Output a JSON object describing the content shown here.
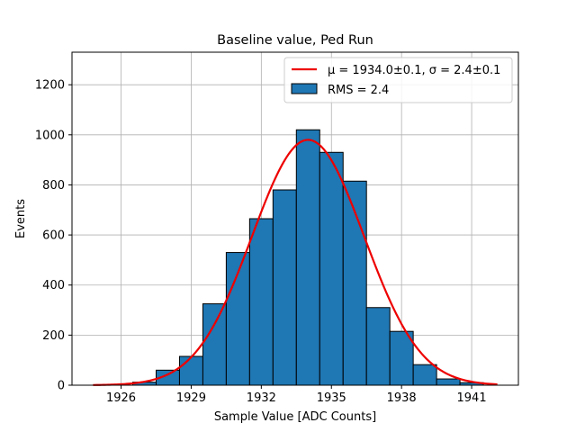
{
  "chart_data": {
    "type": "bar",
    "title": "Baseline value, Ped Run",
    "xlabel": "Sample Value [ADC Counts]",
    "ylabel": "Events",
    "xlim": [
      1923.9,
      1943.0
    ],
    "ylim": [
      0,
      1330
    ],
    "xticks": [
      1926,
      1929,
      1932,
      1935,
      1938,
      1941
    ],
    "yticks": [
      0,
      200,
      400,
      600,
      800,
      1000,
      1200
    ],
    "grid": true,
    "legend_position": "top-right",
    "bin_width": 1,
    "bins": [
      {
        "left": 1926.5,
        "value": 12
      },
      {
        "left": 1927.5,
        "value": 60
      },
      {
        "left": 1928.5,
        "value": 115
      },
      {
        "left": 1929.5,
        "value": 325
      },
      {
        "left": 1930.5,
        "value": 530
      },
      {
        "left": 1931.5,
        "value": 665
      },
      {
        "left": 1932.5,
        "value": 780
      },
      {
        "left": 1933.5,
        "value": 1020
      },
      {
        "left": 1934.5,
        "value": 930
      },
      {
        "left": 1935.5,
        "value": 815
      },
      {
        "left": 1936.5,
        "value": 310
      },
      {
        "left": 1937.5,
        "value": 215
      },
      {
        "left": 1938.5,
        "value": 82
      },
      {
        "left": 1939.5,
        "value": 25
      },
      {
        "left": 1940.5,
        "value": 10
      }
    ],
    "fit": {
      "type": "gaussian",
      "mu": 1934.0,
      "sigma": 2.4,
      "amplitude": 980,
      "x_range": [
        1924.8,
        1942.1
      ],
      "color": "#ee0000"
    },
    "bar_color": "#1f77b4",
    "legend": {
      "fit_label": "μ = 1934.0±0.1, σ = 2.4±0.1",
      "hist_label": "RMS = 2.4"
    }
  }
}
